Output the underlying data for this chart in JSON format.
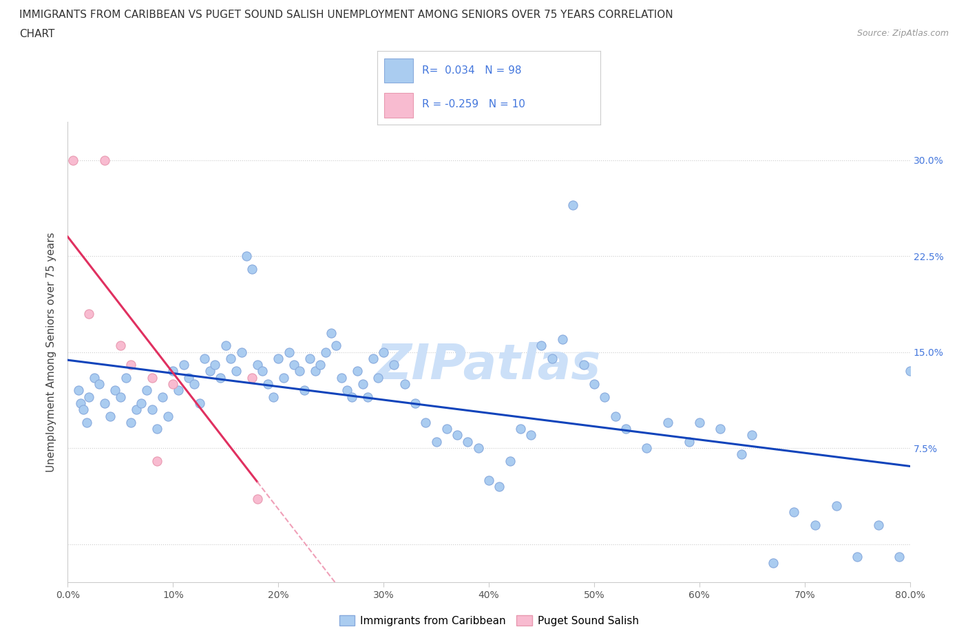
{
  "title_line1": "IMMIGRANTS FROM CARIBBEAN VS PUGET SOUND SALISH UNEMPLOYMENT AMONG SENIORS OVER 75 YEARS CORRELATION",
  "title_line2": "CHART",
  "source_text": "Source: ZipAtlas.com",
  "ylabel": "Unemployment Among Seniors over 75 years",
  "xlabel": "",
  "xlim": [
    0,
    80
  ],
  "ylim": [
    -3,
    33
  ],
  "xticks": [
    0,
    10,
    20,
    30,
    40,
    50,
    60,
    70,
    80
  ],
  "ytick_values": [
    0,
    7.5,
    15.0,
    22.5,
    30.0
  ],
  "bg_color": "#ffffff",
  "grid_color": "#cccccc",
  "caribbean_color": "#aaccf0",
  "caribbean_edge": "#88aadd",
  "salish_color": "#f8bbd0",
  "salish_edge": "#e899b0",
  "blue_line_color": "#1144bb",
  "pink_line_color": "#e03060",
  "pink_dash_color": "#f0a0b8",
  "legend_color": "#4477dd",
  "watermark_text": "ZIPatlas",
  "watermark_color": "#cce0f8",
  "watermark_fontsize": 52,
  "caribbean_scatter": [
    [
      1.0,
      12.0
    ],
    [
      1.2,
      11.0
    ],
    [
      1.5,
      10.5
    ],
    [
      1.8,
      9.5
    ],
    [
      2.0,
      11.5
    ],
    [
      2.5,
      13.0
    ],
    [
      3.0,
      12.5
    ],
    [
      3.5,
      11.0
    ],
    [
      4.0,
      10.0
    ],
    [
      4.5,
      12.0
    ],
    [
      5.0,
      11.5
    ],
    [
      5.5,
      13.0
    ],
    [
      6.0,
      9.5
    ],
    [
      6.5,
      10.5
    ],
    [
      7.0,
      11.0
    ],
    [
      7.5,
      12.0
    ],
    [
      8.0,
      10.5
    ],
    [
      8.5,
      9.0
    ],
    [
      9.0,
      11.5
    ],
    [
      9.5,
      10.0
    ],
    [
      10.0,
      13.5
    ],
    [
      10.5,
      12.0
    ],
    [
      11.0,
      14.0
    ],
    [
      11.5,
      13.0
    ],
    [
      12.0,
      12.5
    ],
    [
      12.5,
      11.0
    ],
    [
      13.0,
      14.5
    ],
    [
      13.5,
      13.5
    ],
    [
      14.0,
      14.0
    ],
    [
      14.5,
      13.0
    ],
    [
      15.0,
      15.5
    ],
    [
      15.5,
      14.5
    ],
    [
      16.0,
      13.5
    ],
    [
      16.5,
      15.0
    ],
    [
      17.0,
      22.5
    ],
    [
      17.5,
      21.5
    ],
    [
      18.0,
      14.0
    ],
    [
      18.5,
      13.5
    ],
    [
      19.0,
      12.5
    ],
    [
      19.5,
      11.5
    ],
    [
      20.0,
      14.5
    ],
    [
      20.5,
      13.0
    ],
    [
      21.0,
      15.0
    ],
    [
      21.5,
      14.0
    ],
    [
      22.0,
      13.5
    ],
    [
      22.5,
      12.0
    ],
    [
      23.0,
      14.5
    ],
    [
      23.5,
      13.5
    ],
    [
      24.0,
      14.0
    ],
    [
      24.5,
      15.0
    ],
    [
      25.0,
      16.5
    ],
    [
      25.5,
      15.5
    ],
    [
      26.0,
      13.0
    ],
    [
      26.5,
      12.0
    ],
    [
      27.0,
      11.5
    ],
    [
      27.5,
      13.5
    ],
    [
      28.0,
      12.5
    ],
    [
      28.5,
      11.5
    ],
    [
      29.0,
      14.5
    ],
    [
      29.5,
      13.0
    ],
    [
      30.0,
      15.0
    ],
    [
      31.0,
      14.0
    ],
    [
      32.0,
      12.5
    ],
    [
      33.0,
      11.0
    ],
    [
      34.0,
      9.5
    ],
    [
      35.0,
      8.0
    ],
    [
      36.0,
      9.0
    ],
    [
      37.0,
      8.5
    ],
    [
      38.0,
      8.0
    ],
    [
      39.0,
      7.5
    ],
    [
      40.0,
      5.0
    ],
    [
      41.0,
      4.5
    ],
    [
      42.0,
      6.5
    ],
    [
      43.0,
      9.0
    ],
    [
      44.0,
      8.5
    ],
    [
      45.0,
      15.5
    ],
    [
      46.0,
      14.5
    ],
    [
      47.0,
      16.0
    ],
    [
      48.0,
      26.5
    ],
    [
      49.0,
      14.0
    ],
    [
      50.0,
      12.5
    ],
    [
      51.0,
      11.5
    ],
    [
      52.0,
      10.0
    ],
    [
      53.0,
      9.0
    ],
    [
      55.0,
      7.5
    ],
    [
      57.0,
      9.5
    ],
    [
      59.0,
      8.0
    ],
    [
      60.0,
      9.5
    ],
    [
      62.0,
      9.0
    ],
    [
      64.0,
      7.0
    ],
    [
      65.0,
      8.5
    ],
    [
      67.0,
      -1.5
    ],
    [
      69.0,
      2.5
    ],
    [
      71.0,
      1.5
    ],
    [
      73.0,
      3.0
    ],
    [
      75.0,
      -1.0
    ],
    [
      77.0,
      1.5
    ],
    [
      79.0,
      -1.0
    ],
    [
      80.0,
      13.5
    ]
  ],
  "salish_scatter": [
    [
      0.5,
      30.0
    ],
    [
      3.5,
      30.0
    ],
    [
      2.0,
      18.0
    ],
    [
      5.0,
      15.5
    ],
    [
      6.0,
      14.0
    ],
    [
      8.0,
      13.0
    ],
    [
      10.0,
      12.5
    ],
    [
      8.5,
      6.5
    ],
    [
      17.5,
      13.0
    ],
    [
      18.0,
      3.5
    ]
  ],
  "pink_line_x_start": 0,
  "pink_line_x_solid_end": 18,
  "pink_line_x_dash_end": 60,
  "blue_line_x_start": 0,
  "blue_line_x_end": 80
}
